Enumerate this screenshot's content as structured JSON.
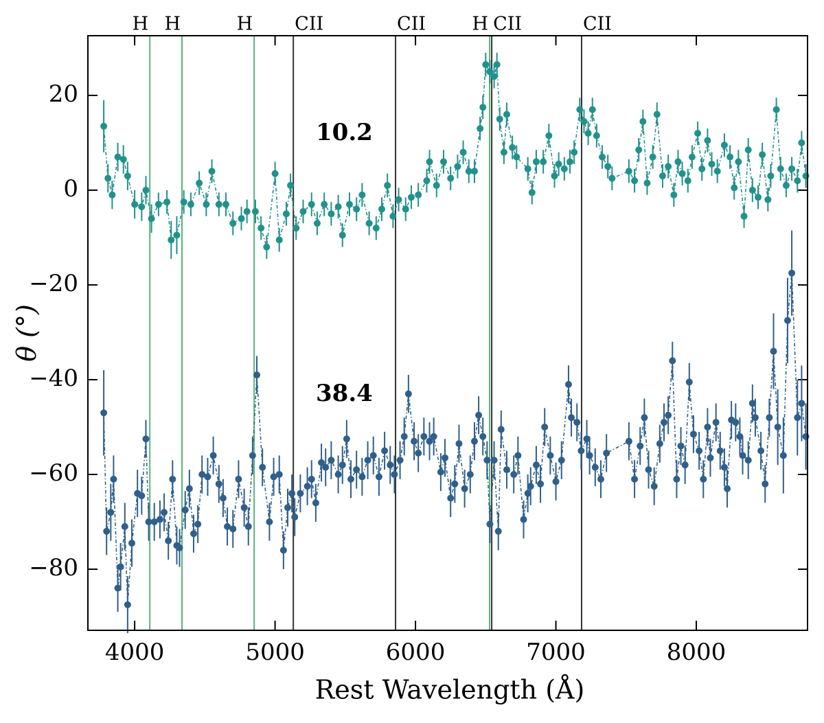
{
  "chart_data": {
    "type": "errorbar",
    "xlabel": "Rest Wavelength (Å)",
    "ylabel": "θ (°)",
    "xlim": [
      3667,
      8792
    ],
    "ylim": [
      -92.9,
      32.6
    ],
    "xticks": [
      4000,
      5000,
      6000,
      7000,
      8000
    ],
    "yticks": [
      {
        "value": -80,
        "label": "−80"
      },
      {
        "value": -60,
        "label": "−60"
      },
      {
        "value": -40,
        "label": "−40"
      },
      {
        "value": -20,
        "label": "−20"
      },
      0,
      20
    ],
    "lines": [
      {
        "x": 4108,
        "label": "H",
        "color": "#5ab47a"
      },
      {
        "x": 4337,
        "label": "H",
        "color": "#5ab47a"
      },
      {
        "x": 4851,
        "label": "H",
        "color": "#5ab47a"
      },
      {
        "x": 5130,
        "label": "CII",
        "color": "#333333"
      },
      {
        "x": 5858,
        "label": "CII",
        "color": "#333333"
      },
      {
        "x": 6528,
        "label": "H",
        "color": "#5ab47a"
      },
      {
        "x": 6543,
        "label": "CII",
        "color": "#333333"
      },
      {
        "x": 7183,
        "label": "CII",
        "color": "#333333"
      }
    ],
    "series": [
      {
        "name": "10.2",
        "color": "#21918c",
        "x": [
          3780,
          3810,
          3840,
          3880,
          3920,
          3950,
          4000,
          4050,
          4080,
          4120,
          4170,
          4230,
          4260,
          4300,
          4350,
          4400,
          4460,
          4510,
          4550,
          4600,
          4650,
          4700,
          4760,
          4800,
          4860,
          4900,
          4940,
          5000,
          5030,
          5080,
          5110,
          5150,
          5200,
          5260,
          5300,
          5350,
          5400,
          5450,
          5480,
          5530,
          5580,
          5620,
          5670,
          5720,
          5760,
          5800,
          5840,
          5880,
          5930,
          5970,
          6020,
          6080,
          6100,
          6150,
          6200,
          6250,
          6300,
          6340,
          6380,
          6420,
          6460,
          6480,
          6500,
          6530,
          6560,
          6580,
          6600,
          6630,
          6650,
          6690,
          6720,
          6800,
          6830,
          6860,
          6910,
          6950,
          6990,
          7020,
          7060,
          7100,
          7130,
          7170,
          7200,
          7230,
          7260,
          7290,
          7330,
          7370,
          7400,
          7520,
          7560,
          7590,
          7620,
          7650,
          7690,
          7720,
          7760,
          7800,
          7840,
          7870,
          7900,
          7940,
          7970,
          8010,
          8040,
          8080,
          8110,
          8150,
          8200,
          8240,
          8270,
          8300,
          8340,
          8370,
          8400,
          8440,
          8470,
          8510,
          8530,
          8570,
          8600,
          8640,
          8680,
          8720,
          8750,
          8780
        ],
        "values": [
          13.5,
          2.5,
          -1,
          7,
          6.5,
          3,
          -3,
          -3.5,
          0,
          -6,
          -3,
          -2.5,
          -10.5,
          -9.5,
          -2.5,
          -3,
          1.5,
          -3,
          4,
          -3,
          -3,
          -7,
          -6,
          -4.5,
          -4.5,
          -8,
          -12,
          3.5,
          -10.5,
          -5,
          1,
          -8,
          -4.5,
          -3,
          -7,
          -3,
          -5,
          -3.5,
          -9.5,
          -3,
          -4,
          -1,
          -7,
          -8,
          -4,
          1,
          -5.5,
          -2,
          -4,
          -1.5,
          -1,
          2,
          6,
          1,
          6,
          2.5,
          5,
          8,
          4,
          4,
          13,
          17.5,
          26.5,
          25,
          24,
          26.5,
          15,
          8,
          16,
          9,
          7,
          4.5,
          -0.5,
          6,
          6,
          11.5,
          3,
          5.5,
          4.5,
          6,
          8,
          17,
          14.5,
          12,
          17,
          11.5,
          7,
          5,
          2.5,
          4,
          2,
          8.5,
          14.5,
          1.5,
          7,
          16,
          3,
          5,
          -1,
          6,
          3.5,
          2,
          7,
          12,
          4.5,
          10.5,
          5.5,
          4,
          9.5,
          7,
          0.5,
          6,
          -5.5,
          8.5,
          0,
          -1.5,
          7.5,
          -2,
          3,
          17,
          4.5,
          1,
          4.5,
          2,
          10,
          3
        ],
        "errors": [
          5.5,
          3,
          3,
          3,
          3,
          3,
          3,
          3,
          3,
          3,
          2.5,
          2.5,
          4,
          4,
          2.5,
          2.5,
          2.5,
          2.5,
          2.5,
          2.5,
          2.5,
          2.5,
          2.5,
          2.5,
          2.5,
          2.5,
          2.5,
          2.5,
          2.5,
          2.5,
          2.5,
          2.5,
          2.5,
          2.5,
          2.5,
          2.5,
          2.5,
          2.5,
          2.5,
          2.5,
          2.5,
          2.5,
          2.5,
          2.5,
          2.5,
          2.5,
          2.5,
          2.5,
          2.5,
          2.5,
          2.5,
          2.5,
          2.5,
          2.5,
          2.5,
          2.5,
          2.5,
          2.5,
          2.5,
          2.5,
          2.5,
          2.5,
          2.5,
          2.5,
          2.5,
          2.5,
          2.5,
          2.5,
          2.5,
          2.5,
          2.5,
          2.5,
          2.5,
          2.5,
          2.5,
          2.5,
          2.5,
          2.5,
          2.5,
          2.5,
          2.5,
          2.5,
          2.5,
          2.5,
          2.5,
          2.5,
          2.5,
          2.5,
          2.5,
          2.5,
          2.5,
          2.5,
          2.5,
          2.5,
          2.5,
          2.5,
          2.5,
          2.5,
          2.5,
          2.5,
          2.5,
          2.5,
          2.5,
          2.5,
          2.5,
          2.5,
          2.5,
          2.5,
          2.5,
          2.5,
          2.5,
          2.5,
          2.5,
          2.5,
          2.5,
          2.5,
          2.5,
          2.5,
          2.5,
          2.5,
          2.5,
          2.5,
          2.5,
          2.5,
          2.5,
          2.5
        ]
      },
      {
        "name": "38.4",
        "color": "#2f5f8a",
        "x": [
          3780,
          3800,
          3830,
          3850,
          3880,
          3900,
          3930,
          3950,
          3980,
          4020,
          4050,
          4080,
          4100,
          4140,
          4180,
          4210,
          4240,
          4270,
          4300,
          4320,
          4360,
          4390,
          4420,
          4450,
          4480,
          4520,
          4560,
          4600,
          4630,
          4660,
          4700,
          4740,
          4780,
          4810,
          4840,
          4870,
          4910,
          4960,
          4990,
          5030,
          5060,
          5090,
          5120,
          5140,
          5180,
          5230,
          5260,
          5290,
          5330,
          5360,
          5400,
          5450,
          5480,
          5510,
          5540,
          5580,
          5620,
          5660,
          5700,
          5740,
          5780,
          5820,
          5850,
          5890,
          5920,
          5950,
          5990,
          6020,
          6060,
          6100,
          6130,
          6180,
          6210,
          6250,
          6280,
          6310,
          6350,
          6390,
          6420,
          6450,
          6480,
          6510,
          6530,
          6560,
          6590,
          6610,
          6650,
          6700,
          6730,
          6770,
          6800,
          6820,
          6860,
          6890,
          6920,
          6960,
          7000,
          7040,
          7090,
          7110,
          7150,
          7180,
          7220,
          7240,
          7280,
          7320,
          7360,
          7520,
          7560,
          7600,
          7630,
          7660,
          7700,
          7740,
          7770,
          7800,
          7830,
          7860,
          7890,
          7920,
          7950,
          7980,
          8020,
          8050,
          8080,
          8100,
          8140,
          8170,
          8200,
          8220,
          8250,
          8280,
          8310,
          8330,
          8370,
          8400,
          8420,
          8460,
          8490,
          8520,
          8550,
          8580,
          8620,
          8650,
          8680,
          8720,
          8750,
          8780
        ],
        "values": [
          -47,
          -72,
          -68,
          -61,
          -84,
          -79.5,
          -71,
          -87.5,
          -74.5,
          -64,
          -64.5,
          -52.5,
          -70,
          -70,
          -69.5,
          -68,
          -74,
          -61,
          -75,
          -75.5,
          -67.5,
          -63,
          -72.5,
          -70.5,
          -60,
          -60.5,
          -56,
          -62,
          -65,
          -71,
          -71.5,
          -61,
          -67,
          -71,
          -56,
          -39,
          -58.5,
          -70,
          -60.5,
          -60,
          -76,
          -67,
          -64,
          -69,
          -64,
          -62.5,
          -61,
          -66,
          -57.5,
          -58.5,
          -57,
          -60,
          -58,
          -52.5,
          -61,
          -59,
          -60.5,
          -57,
          -56,
          -60.5,
          -55,
          -58,
          -60,
          -57,
          -52,
          -43,
          -53,
          -55.5,
          -52,
          -53,
          -52,
          -59.5,
          -56.5,
          -65,
          -62,
          -53.5,
          -63,
          -60,
          -53,
          -47.5,
          -52,
          -57,
          -70.5,
          -57,
          -72,
          -50.5,
          -59,
          -60,
          -56,
          -69.5,
          -64,
          -62.5,
          -58,
          -62,
          -50,
          -56,
          -61.5,
          -57,
          -41,
          -48,
          -49,
          -55,
          -52.5,
          -56,
          -58.5,
          -61,
          -55.5,
          -53,
          -61,
          -54,
          -48,
          -59,
          -62.5,
          -53.5,
          -49,
          -47.5,
          -36,
          -61,
          -54,
          -58,
          -40.5,
          -51.5,
          -55,
          -61,
          -50,
          -56.5,
          -49,
          -55,
          -58.5,
          -63,
          -48.5,
          -49,
          -52,
          -56,
          -57,
          -45,
          -48,
          -55,
          -62,
          -48,
          -34,
          -50,
          -56,
          -27.5,
          -17.5,
          -48,
          -45,
          -52
        ],
        "errors": [
          9,
          5,
          6,
          5,
          5,
          5,
          5,
          6,
          5,
          5,
          4,
          4,
          4,
          4,
          4,
          4,
          4,
          4,
          4,
          4,
          4,
          4,
          4,
          4,
          4,
          4,
          4,
          4,
          4,
          4,
          4,
          4,
          4,
          4,
          4,
          4,
          4,
          4,
          4,
          4,
          4,
          4,
          4,
          4,
          4,
          4,
          4,
          4,
          4,
          4,
          4,
          4,
          4,
          4,
          4,
          4,
          4,
          4,
          4,
          4,
          4,
          4,
          4,
          4,
          4,
          4,
          4,
          4,
          4,
          4,
          4,
          4,
          4,
          4,
          4,
          4,
          4,
          4,
          4,
          4,
          4,
          4,
          4,
          4,
          4,
          4,
          4,
          4,
          4,
          4,
          4,
          4,
          4,
          4,
          4,
          4,
          4,
          4,
          4,
          4,
          4,
          4,
          4,
          4,
          4,
          4,
          4,
          4,
          4,
          4,
          4,
          4,
          4,
          4,
          4,
          4,
          4,
          4,
          4,
          4,
          4,
          4,
          4,
          4,
          4,
          4,
          4,
          4,
          4,
          4,
          4,
          4,
          4,
          4,
          4,
          4,
          4,
          4,
          4,
          4,
          8,
          8,
          8,
          9,
          9,
          8,
          8,
          7
        ]
      }
    ]
  }
}
